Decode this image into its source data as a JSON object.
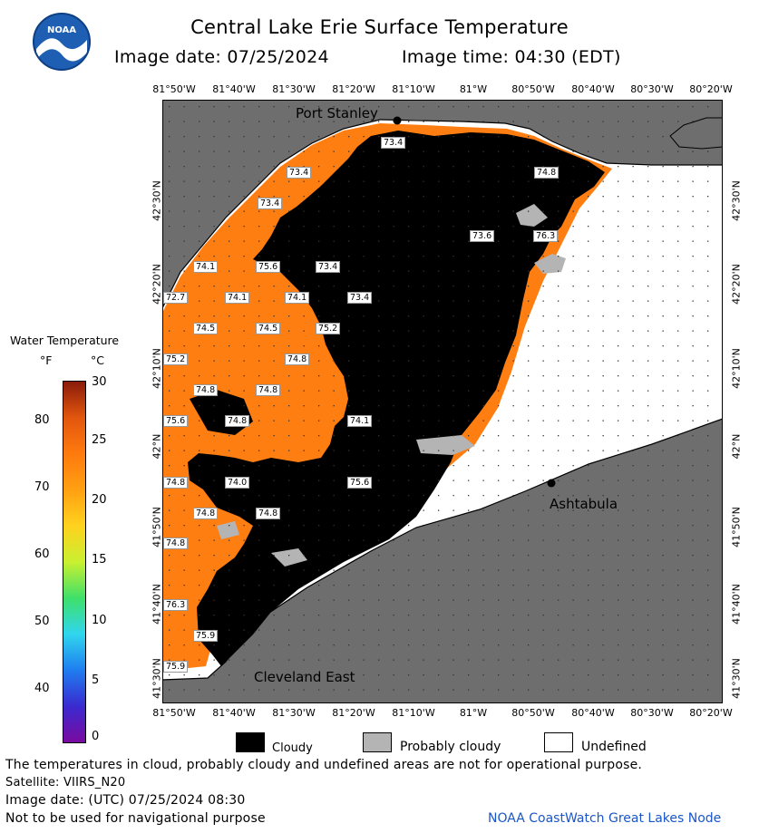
{
  "header": {
    "title": "Central Lake Erie Surface Temperature",
    "image_date": "Image date: 07/25/2024",
    "image_time": "Image time: 04:30 (EDT)"
  },
  "longitude_ticks": [
    "81°50'W",
    "81°40'W",
    "81°30'W",
    "81°20'W",
    "81°10'W",
    "81°W",
    "80°50'W",
    "80°40'W",
    "80°30'W",
    "80°20'W"
  ],
  "latitude_ticks": [
    "42°30'N",
    "42°20'N",
    "42°10'N",
    "42°N",
    "41°50'N",
    "41°40'N",
    "41°30'N"
  ],
  "places": {
    "port_stanley": "Port Stanley",
    "ashtabula": "Ashtabula",
    "cleveland_east": "Cleveland East"
  },
  "temperature_labels": [
    "73.4",
    "73.4",
    "73.4",
    "74.8",
    "73.6",
    "76.3",
    "74.1",
    "75.6",
    "73.4",
    "72.7",
    "74.1",
    "74.1",
    "73.4",
    "74.5",
    "74.5",
    "75.2",
    "75.2",
    "74.8",
    "74.8",
    "74.8",
    "75.6",
    "74.8",
    "74.1",
    "74.8",
    "74.0",
    "75.6",
    "74.8",
    "74.8",
    "74.8",
    "76.3",
    "75.9",
    "75.9"
  ],
  "legend": {
    "title": "Water Temperature",
    "unit_f": "°F",
    "unit_c": "°C",
    "f_ticks": [
      "80",
      "70",
      "60",
      "50",
      "40"
    ],
    "c_ticks": [
      "30",
      "25",
      "20",
      "15",
      "10",
      "5",
      "0"
    ],
    "colorbar_colors": [
      "#7a0aa0",
      "#3a2ad0",
      "#1f7df0",
      "#30d6ee",
      "#3ee06a",
      "#c9f030",
      "#ffd21e",
      "#ffa012",
      "#ff7a0e",
      "#e2560e",
      "#8a1c0a"
    ]
  },
  "mask_legend": {
    "cloudy": "Cloudy",
    "probably_cloudy": "Probably cloudy",
    "undefined": "Undefined"
  },
  "footer": {
    "disclaimer": "The temperatures in cloud, probably cloudy and undefined areas are not for operational purpose.",
    "satellite": "Satellite: VIIRS_N20",
    "utc_date": "Image date: (UTC) 07/25/2024  08:30",
    "nav_warning": "Not to be used for navigational purpose",
    "credit": "NOAA CoastWatch Great Lakes Node"
  },
  "colors": {
    "land": "#6e6e6e",
    "water_warm": "#ff7e12",
    "cloud": "#000000",
    "probably_cloudy": "#b4b4b4",
    "undefined": "#ffffff",
    "credit_blue": "#1a56c8"
  }
}
